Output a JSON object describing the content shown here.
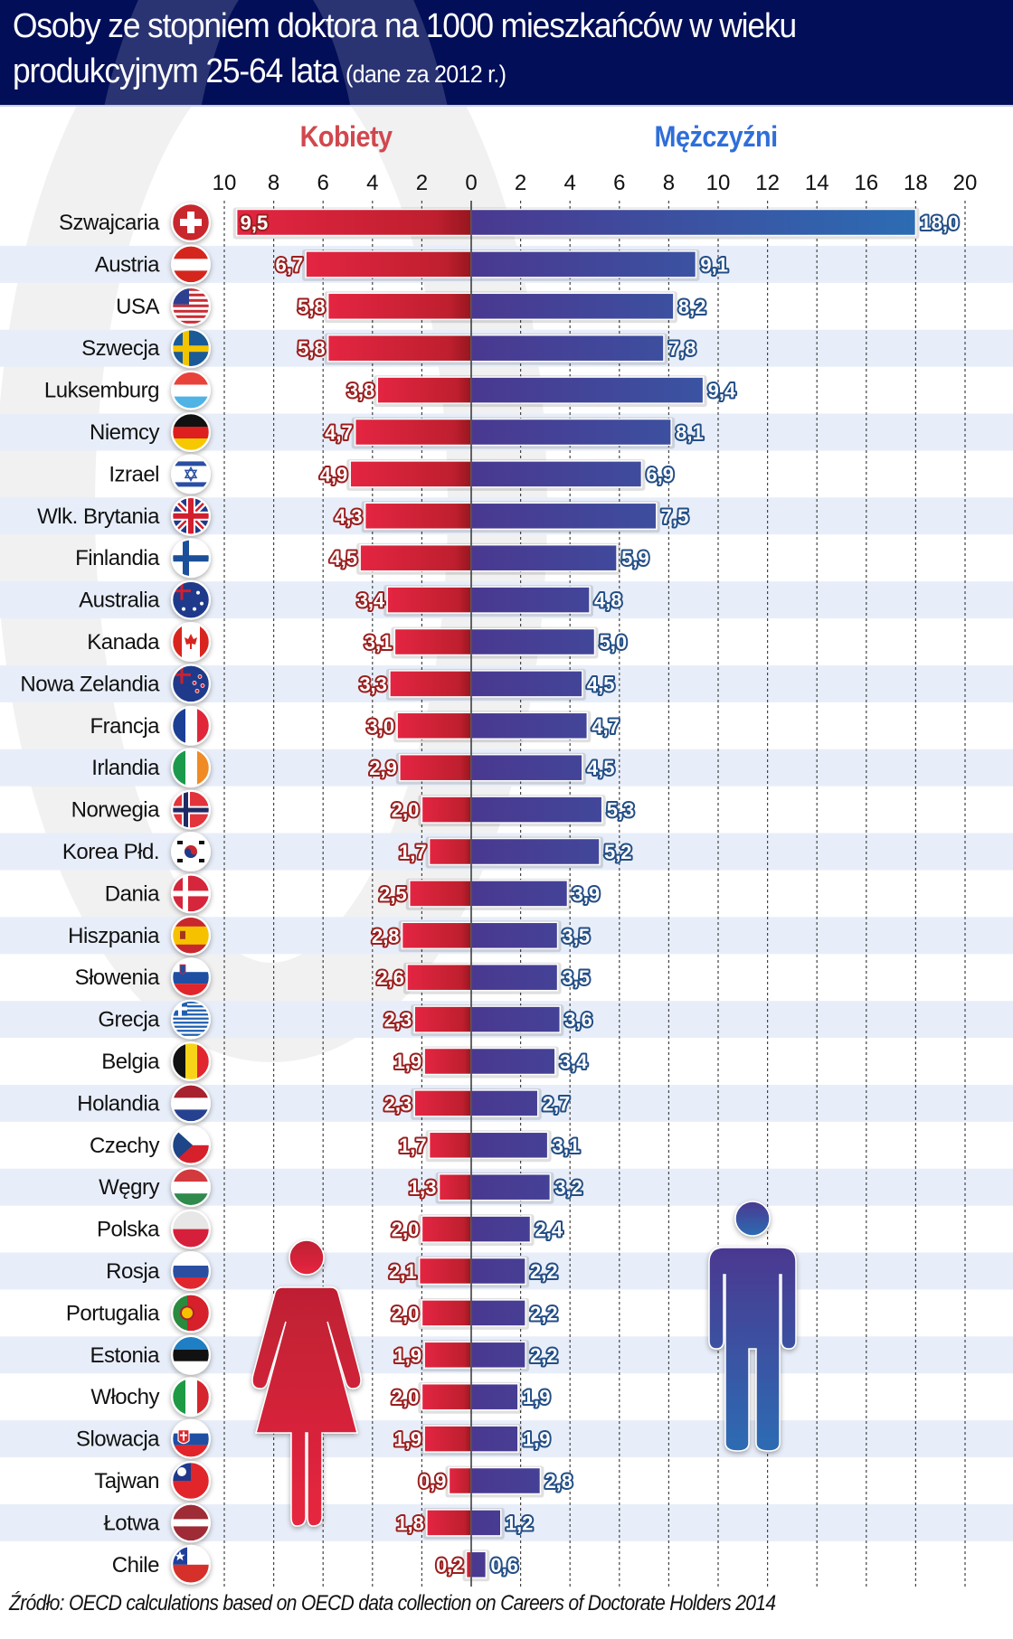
{
  "header": {
    "title_line1": "Osoby ze stopniem doktora na 1000 mieszkańców w wieku",
    "title_line2": "produkcyjnym 25-64 lata",
    "title_suffix": "(dane za 2012 r.)"
  },
  "source": "Źródło: OECD calculations based on OECD data collection on Careers of Doctorate Holders 2014",
  "colors": {
    "header_bg": "#020e58",
    "women": "#d0243a",
    "women_dark": "#a81c28",
    "men": "#4a3890",
    "men_light": "#2d6cb2",
    "women_label": "#d0484e",
    "men_label": "#2f6ed9",
    "stripe": "#e8eef9"
  },
  "icons": {
    "women": "woman-figure-icon",
    "men": "man-figure-icon"
  },
  "chart_data": {
    "type": "bar",
    "orientation": "horizontal-butterfly",
    "title": "Osoby ze stopniem doktora na 1000 mieszkańców w wieku produkcyjnym 25-64 lata (dane za 2012 r.)",
    "xlabel": "",
    "ylabel": "",
    "grid": true,
    "left_axis": {
      "label": "Kobiety",
      "ticks": [
        "10",
        "8",
        "6",
        "4",
        "2",
        "0"
      ],
      "range": [
        0,
        10
      ]
    },
    "right_axis": {
      "label": "Mężczyźni",
      "ticks": [
        "2",
        "4",
        "6",
        "8",
        "10",
        "12",
        "14",
        "16",
        "18",
        "20"
      ],
      "range": [
        0,
        20
      ]
    },
    "categories": [
      "Szwajcaria",
      "Austria",
      "USA",
      "Szwecja",
      "Luksemburg",
      "Niemcy",
      "Izrael",
      "Wlk. Brytania",
      "Finlandia",
      "Australia",
      "Kanada",
      "Nowa Zelandia",
      "Francja",
      "Irlandia",
      "Norwegia",
      "Korea Płd.",
      "Dania",
      "Hiszpania",
      "Słowenia",
      "Grecja",
      "Belgia",
      "Holandia",
      "Czechy",
      "Węgry",
      "Polska",
      "Rosja",
      "Portugalia",
      "Estonia",
      "Włochy",
      "Slowacja",
      "Tajwan",
      "Łotwa",
      "Chile"
    ],
    "flags": [
      "ch",
      "at",
      "us",
      "se",
      "lu",
      "de",
      "il",
      "gb",
      "fi",
      "au",
      "ca",
      "nz",
      "fr",
      "ie",
      "no",
      "kr",
      "dk",
      "es",
      "si",
      "gr",
      "be",
      "nl",
      "cz",
      "hu",
      "pl",
      "ru",
      "pt",
      "ee",
      "it",
      "sk",
      "tw",
      "lv",
      "cl"
    ],
    "series": [
      {
        "name": "Kobiety",
        "side": "left",
        "values": [
          9.5,
          6.7,
          5.8,
          5.8,
          3.8,
          4.7,
          4.9,
          4.3,
          4.5,
          3.4,
          3.1,
          3.3,
          3.0,
          2.9,
          2.0,
          1.7,
          2.5,
          2.8,
          2.6,
          2.3,
          1.9,
          2.3,
          1.7,
          1.3,
          2.0,
          2.1,
          2.0,
          1.9,
          2.0,
          1.9,
          0.9,
          1.8,
          0.2
        ],
        "labels": [
          "9,5",
          "6,7",
          "5,8",
          "5,8",
          "3,8",
          "4,7",
          "4,9",
          "4,3",
          "4,5",
          "3,4",
          "3,1",
          "3,3",
          "3,0",
          "2,9",
          "2,0",
          "1,7",
          "2,5",
          "2,8",
          "2,6",
          "2,3",
          "1,9",
          "2,3",
          "1,7",
          "1,3",
          "2,0",
          "2,1",
          "2,0",
          "1,9",
          "2,0",
          "1,9",
          "0,9",
          "1,8",
          "0,2"
        ]
      },
      {
        "name": "Mężczyźni",
        "side": "right",
        "values": [
          18.0,
          9.1,
          8.2,
          7.8,
          9.4,
          8.1,
          6.9,
          7.5,
          5.9,
          4.8,
          5.0,
          4.5,
          4.7,
          4.5,
          5.3,
          5.2,
          3.9,
          3.5,
          3.5,
          3.6,
          3.4,
          2.7,
          3.1,
          3.2,
          2.4,
          2.2,
          2.2,
          2.2,
          1.9,
          1.9,
          2.8,
          1.2,
          0.6
        ],
        "labels": [
          "18,0",
          "9,1",
          "8,2",
          "7,8",
          "9,4",
          "8,1",
          "6,9",
          "7,5",
          "5,9",
          "4,8",
          "5,0",
          "4,5",
          "4,7",
          "4,5",
          "5,3",
          "5,2",
          "3,9",
          "3,5",
          "3,5",
          "3,6",
          "3,4",
          "2,7",
          "3,1",
          "3,2",
          "2,4",
          "2,2",
          "2,2",
          "2,2",
          "1,9",
          "1,9",
          "2,8",
          "1,2",
          "0,6"
        ]
      }
    ]
  }
}
